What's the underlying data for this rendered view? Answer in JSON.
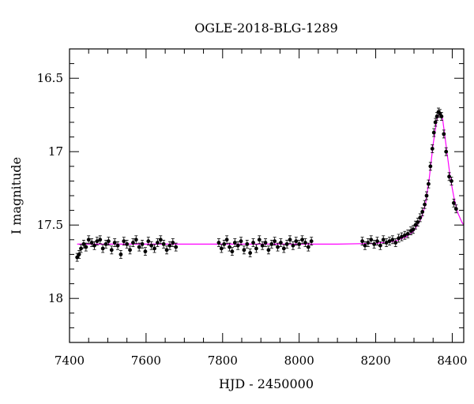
{
  "chart_data": {
    "type": "scatter",
    "title": "OGLE-2018-BLG-1289",
    "xlabel": "HJD - 2450000",
    "ylabel": "I magnitude",
    "xlim": [
      7400,
      8430
    ],
    "ylim": [
      18.3,
      16.3
    ],
    "y_inverted": true,
    "x_ticks": [
      7400,
      7600,
      7800,
      8000,
      8200,
      8400
    ],
    "x_tick_labels": [
      "7400",
      "7600",
      "7800",
      "8000",
      "8200",
      "8400"
    ],
    "y_ticks": [
      16.5,
      17,
      17.5,
      18
    ],
    "y_tick_labels": [
      "16.5",
      "17",
      "17.5",
      "18"
    ],
    "grid": false,
    "colors": {
      "points": "#000000",
      "model": "#ff00ff",
      "axes": "#000000"
    },
    "model": {
      "name": "",
      "color": "#ff00ff",
      "x": [
        7420,
        8100,
        8200,
        8250,
        8280,
        8300,
        8320,
        8330,
        8340,
        8350,
        8360,
        8368,
        8375,
        8385,
        8395,
        8405,
        8415,
        8425,
        8430
      ],
      "y": [
        17.63,
        17.63,
        17.625,
        17.61,
        17.58,
        17.54,
        17.45,
        17.36,
        17.18,
        16.95,
        16.78,
        16.73,
        16.78,
        16.98,
        17.18,
        17.32,
        17.42,
        17.48,
        17.5
      ]
    },
    "series": [
      {
        "color": "#000000",
        "points": [
          [
            7420,
            17.72
          ],
          [
            7425,
            17.7
          ],
          [
            7430,
            17.66
          ],
          [
            7437,
            17.63
          ],
          [
            7443,
            17.65
          ],
          [
            7450,
            17.6
          ],
          [
            7458,
            17.62
          ],
          [
            7465,
            17.64
          ],
          [
            7472,
            17.61
          ],
          [
            7480,
            17.6
          ],
          [
            7487,
            17.66
          ],
          [
            7495,
            17.63
          ],
          [
            7502,
            17.61
          ],
          [
            7510,
            17.67
          ],
          [
            7518,
            17.62
          ],
          [
            7526,
            17.64
          ],
          [
            7534,
            17.7
          ],
          [
            7542,
            17.61
          ],
          [
            7550,
            17.63
          ],
          [
            7558,
            17.67
          ],
          [
            7566,
            17.62
          ],
          [
            7574,
            17.6
          ],
          [
            7582,
            17.65
          ],
          [
            7590,
            17.63
          ],
          [
            7598,
            17.68
          ],
          [
            7606,
            17.61
          ],
          [
            7614,
            17.64
          ],
          [
            7622,
            17.66
          ],
          [
            7630,
            17.62
          ],
          [
            7638,
            17.6
          ],
          [
            7646,
            17.63
          ],
          [
            7654,
            17.67
          ],
          [
            7662,
            17.64
          ],
          [
            7670,
            17.62
          ],
          [
            7678,
            17.65
          ],
          [
            7790,
            17.62
          ],
          [
            7797,
            17.66
          ],
          [
            7804,
            17.63
          ],
          [
            7811,
            17.6
          ],
          [
            7818,
            17.65
          ],
          [
            7825,
            17.68
          ],
          [
            7832,
            17.62
          ],
          [
            7840,
            17.64
          ],
          [
            7848,
            17.61
          ],
          [
            7856,
            17.67
          ],
          [
            7864,
            17.63
          ],
          [
            7872,
            17.69
          ],
          [
            7880,
            17.62
          ],
          [
            7888,
            17.66
          ],
          [
            7896,
            17.6
          ],
          [
            7904,
            17.64
          ],
          [
            7912,
            17.62
          ],
          [
            7920,
            17.67
          ],
          [
            7928,
            17.63
          ],
          [
            7936,
            17.61
          ],
          [
            7944,
            17.65
          ],
          [
            7952,
            17.62
          ],
          [
            7960,
            17.66
          ],
          [
            7968,
            17.63
          ],
          [
            7976,
            17.6
          ],
          [
            7984,
            17.64
          ],
          [
            7992,
            17.61
          ],
          [
            8000,
            17.63
          ],
          [
            8008,
            17.6
          ],
          [
            8016,
            17.62
          ],
          [
            8024,
            17.65
          ],
          [
            8032,
            17.61
          ],
          [
            8165,
            17.61
          ],
          [
            8172,
            17.64
          ],
          [
            8180,
            17.62
          ],
          [
            8188,
            17.6
          ],
          [
            8196,
            17.63
          ],
          [
            8204,
            17.61
          ],
          [
            8212,
            17.64
          ],
          [
            8220,
            17.6
          ],
          [
            8228,
            17.62
          ],
          [
            8236,
            17.61
          ],
          [
            8244,
            17.6
          ],
          [
            8252,
            17.62
          ],
          [
            8260,
            17.59
          ],
          [
            8268,
            17.58
          ],
          [
            8276,
            17.57
          ],
          [
            8284,
            17.56
          ],
          [
            8292,
            17.54
          ],
          [
            8298,
            17.53
          ],
          [
            8304,
            17.5
          ],
          [
            8310,
            17.48
          ],
          [
            8316,
            17.45
          ],
          [
            8322,
            17.41
          ],
          [
            8328,
            17.36
          ],
          [
            8333,
            17.3
          ],
          [
            8338,
            17.22
          ],
          [
            8343,
            17.1
          ],
          [
            8348,
            16.98
          ],
          [
            8352,
            16.87
          ],
          [
            8356,
            16.8
          ],
          [
            8360,
            16.76
          ],
          [
            8364,
            16.73
          ],
          [
            8368,
            16.74
          ],
          [
            8372,
            16.76
          ],
          [
            8378,
            16.88
          ],
          [
            8384,
            17.0
          ],
          [
            8392,
            17.17
          ],
          [
            8398,
            17.2
          ],
          [
            8404,
            17.35
          ],
          [
            8410,
            17.39
          ]
        ]
      }
    ]
  }
}
